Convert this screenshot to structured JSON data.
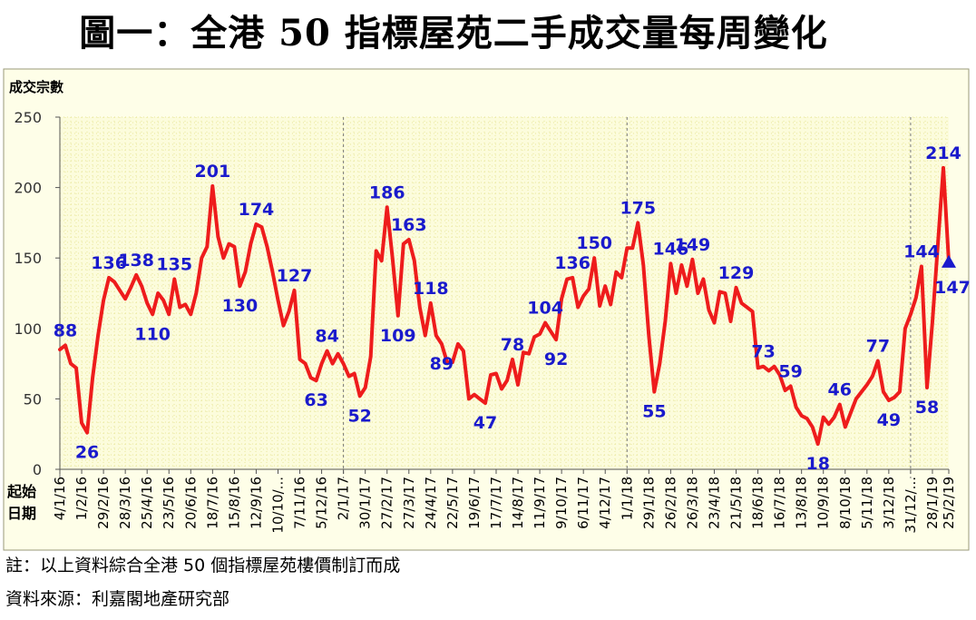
{
  "title": "圖一：全港 50 指標屋苑二手成交量每周變化",
  "notes": {
    "note1": "註：以上資料綜合全港 50 個指標屋苑樓價制訂而成",
    "note2": "資料來源：利嘉閣地產研究部"
  },
  "colors": {
    "line": "#ee1c1c",
    "label": "#1a1acc",
    "plot_bg": "#fcfcdc",
    "grid": "#e8e69a"
  },
  "chart_data": {
    "type": "line",
    "title": "圖一：全港 50 指標屋苑二手成交量每周變化",
    "ylabel": "成交宗數",
    "xlabel": "起始日期",
    "xlabel_lines": [
      "起始",
      "日期"
    ],
    "ylim": [
      0,
      250
    ],
    "yticks": [
      0,
      50,
      100,
      150,
      200,
      250
    ],
    "grid": true,
    "x_tick_labels": [
      "4/1/16",
      "1/2/16",
      "29/2/16",
      "28/3/16",
      "25/4/16",
      "23/5/16",
      "20/6/16",
      "18/7/16",
      "15/8/16",
      "12/9/16",
      "10/10/...",
      "7/11/16",
      "5/12/16",
      "2/1/17",
      "30/1/17",
      "27/2/17",
      "27/3/17",
      "24/4/17",
      "22/5/17",
      "19/6/17",
      "17/7/17",
      "14/8/17",
      "11/9/17",
      "9/10/17",
      "6/11/17",
      "4/12/17",
      "1/1/18",
      "29/1/18",
      "26/2/18",
      "26/3/18",
      "23/4/18",
      "21/5/18",
      "18/6/18",
      "16/7/18",
      "13/8/18",
      "10/9/18",
      "8/10/18",
      "5/11/18",
      "3/12/18",
      "31/12/...",
      "28/1/19",
      "25/2/19"
    ],
    "series": [
      {
        "values": [
          85,
          88,
          75,
          72,
          33,
          26,
          65,
          95,
          120,
          136,
          133,
          127,
          121,
          129,
          138,
          130,
          118,
          110,
          125,
          120,
          110,
          135,
          115,
          117,
          110,
          125,
          150,
          158,
          201,
          165,
          150,
          160,
          158,
          130,
          140,
          160,
          174,
          172,
          158,
          140,
          120,
          102,
          112,
          127,
          78,
          75,
          65,
          63,
          75,
          84,
          75,
          82,
          75,
          66,
          68,
          52,
          58,
          80,
          155,
          148,
          186,
          150,
          109,
          160,
          163,
          148,
          115,
          95,
          118,
          95,
          89,
          76,
          76,
          89,
          84,
          50,
          53,
          50,
          47,
          67,
          68,
          57,
          63,
          78,
          60,
          83,
          82,
          94,
          96,
          104,
          98,
          92,
          121,
          135,
          136,
          115,
          123,
          128,
          150,
          116,
          130,
          117,
          140,
          136,
          157,
          157,
          175,
          145,
          95,
          55,
          75,
          105,
          146,
          125,
          145,
          130,
          149,
          125,
          135,
          113,
          104,
          126,
          125,
          105,
          129,
          118,
          115,
          112,
          72,
          73,
          70,
          73,
          67,
          56,
          59,
          44,
          38,
          36,
          30,
          18,
          37,
          32,
          37,
          46,
          30,
          40,
          50,
          55,
          60,
          66,
          77,
          55,
          49,
          51,
          55,
          100,
          110,
          122,
          144,
          58,
          105,
          160,
          214,
          147
        ]
      }
    ],
    "annotations": [
      {
        "text": "88",
        "value": 88
      },
      {
        "text": "26",
        "value": 26
      },
      {
        "text": "136",
        "value": 136
      },
      {
        "text": "138",
        "value": 138
      },
      {
        "text": "110",
        "value": 110
      },
      {
        "text": "135",
        "value": 135
      },
      {
        "text": "201",
        "value": 201
      },
      {
        "text": "130",
        "value": 130
      },
      {
        "text": "174",
        "value": 174
      },
      {
        "text": "127",
        "value": 127
      },
      {
        "text": "63",
        "value": 63
      },
      {
        "text": "84",
        "value": 84
      },
      {
        "text": "52",
        "value": 52
      },
      {
        "text": "186",
        "value": 186
      },
      {
        "text": "109",
        "value": 109
      },
      {
        "text": "163",
        "value": 163
      },
      {
        "text": "118",
        "value": 118
      },
      {
        "text": "89",
        "value": 89
      },
      {
        "text": "47",
        "value": 47
      },
      {
        "text": "78",
        "value": 78
      },
      {
        "text": "104",
        "value": 104
      },
      {
        "text": "92",
        "value": 92
      },
      {
        "text": "136",
        "value": 136
      },
      {
        "text": "150",
        "value": 150
      },
      {
        "text": "175",
        "value": 175
      },
      {
        "text": "55",
        "value": 55
      },
      {
        "text": "146",
        "value": 146
      },
      {
        "text": "149",
        "value": 149
      },
      {
        "text": "129",
        "value": 129
      },
      {
        "text": "73",
        "value": 73
      },
      {
        "text": "59",
        "value": 59
      },
      {
        "text": "18",
        "value": 18
      },
      {
        "text": "46",
        "value": 46
      },
      {
        "text": "77",
        "value": 77
      },
      {
        "text": "49",
        "value": 49
      },
      {
        "text": "144",
        "value": 144
      },
      {
        "text": "58",
        "value": 58
      },
      {
        "text": "214",
        "value": 214
      },
      {
        "text": "147",
        "value": 147
      }
    ]
  }
}
